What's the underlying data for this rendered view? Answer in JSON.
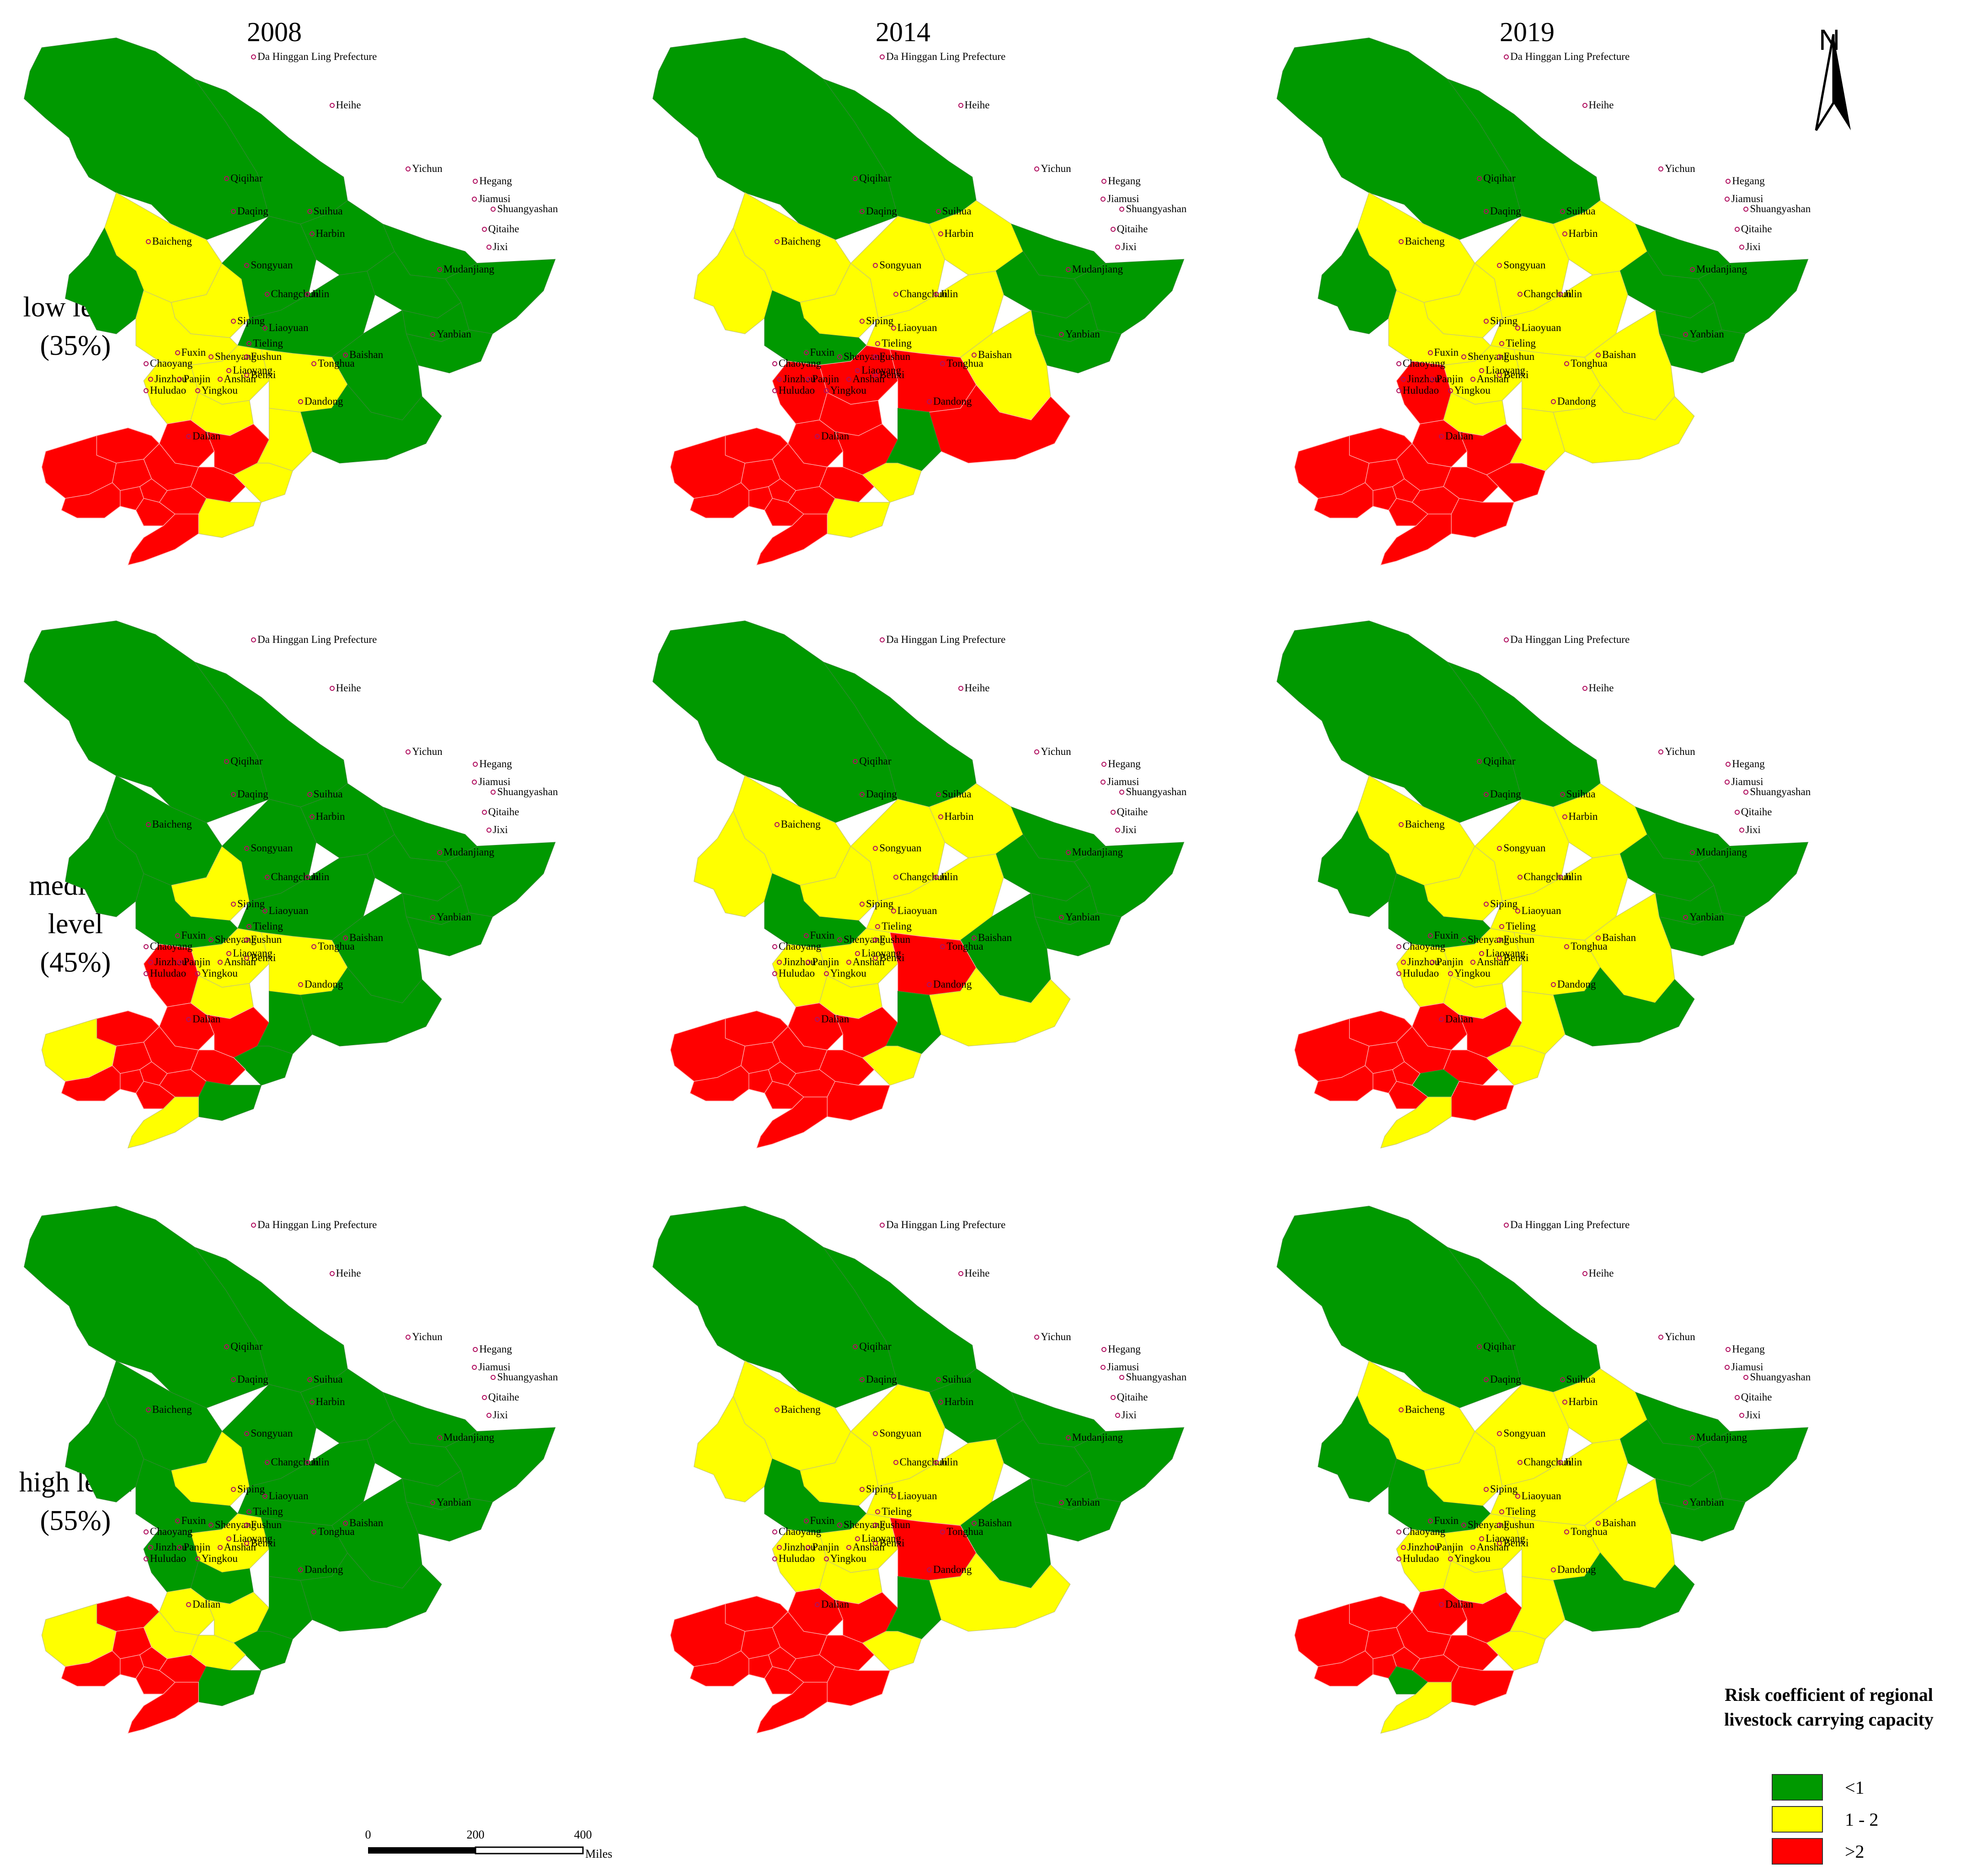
{
  "years": [
    "2008",
    "2014",
    "2019"
  ],
  "rows": [
    {
      "label": "low level",
      "pct": "(35%)"
    },
    {
      "label": "medium level",
      "pct": "(45%)"
    },
    {
      "label": "high level",
      "pct": "(55%)"
    }
  ],
  "north_label": "N",
  "legend": {
    "title_line1": "Risk coefficient of regional",
    "title_line2": "livestock carrying capacity",
    "items": [
      {
        "label": "<1",
        "color": "#009900"
      },
      {
        "label": "1 - 2",
        "color": "#ffff00"
      },
      {
        "label": ">2",
        "color": "#ff0000"
      }
    ]
  },
  "scale": {
    "ticks": [
      "0",
      "200",
      "400"
    ],
    "unit": "Miles"
  },
  "cities": [
    "Da Hinggan Ling Prefecture",
    "Heihe",
    "Yichun",
    "Hegang",
    "Jiamusi",
    "Shuangyashan",
    "Qiqihar",
    "Daqing",
    "Suihua",
    "Harbin",
    "Qitaihe",
    "Jixi",
    "Baicheng",
    "Songyuan",
    "Mudanjiang",
    "Changchun",
    "Jilin",
    "Siping",
    "Liaoyuan",
    "Yanbian",
    "Tieling",
    "Fuxin",
    "Shenyang",
    "Fushun",
    "Chaoyang",
    "Baishan",
    "Tonghua",
    "Benxi",
    "Anshan",
    "Jinzhou",
    "Panjin",
    "Liaoyang",
    "Huludao",
    "Yingkou",
    "Dandong",
    "Dalian"
  ],
  "colors": {
    "green": "#009900",
    "yellow": "#ffff00",
    "red": "#ff0000"
  },
  "risk_maps": [
    {
      "year": "2008",
      "level": "low level (35%)",
      "green": [
        "Da Hinggan Ling Prefecture",
        "Heihe",
        "Yichun",
        "Hegang",
        "Jiamusi",
        "Shuangyashan",
        "Qitaihe",
        "Jixi",
        "Mudanjiang",
        "Harbin",
        "Suihua",
        "Baicheng",
        "Yanbian"
      ],
      "yellow": [
        "Qiqihar",
        "Daqing",
        "Songyuan",
        "Changchun",
        "Jilin",
        "Siping",
        "Liaoyuan",
        "Tonghua",
        "Baishan",
        "Dandong"
      ],
      "red": [
        "Chaoyang",
        "Fuxin",
        "Tieling",
        "Shenyang",
        "Fushun",
        "Benxi",
        "Jinzhou",
        "Panjin",
        "Huludao",
        "Anshan",
        "Liaoyang",
        "Yingkou",
        "Dalian"
      ]
    },
    {
      "year": "2014",
      "level": "low level (35%)",
      "green": [
        "Da Hinggan Ling Prefecture",
        "Heihe",
        "Hegang",
        "Jiamusi",
        "Shuangyashan",
        "Qitaihe",
        "Jixi",
        "Songyuan",
        "Baishan"
      ],
      "yellow": [
        "Qiqihar",
        "Daqing",
        "Suihua",
        "Harbin",
        "Yichun",
        "Mudanjiang",
        "Baicheng",
        "Tonghua",
        "Dandong"
      ],
      "red": [
        "Changchun",
        "Jilin",
        "Siping",
        "Liaoyuan",
        "Yanbian",
        "Tieling",
        "Fuxin",
        "Shenyang",
        "Fushun",
        "Chaoyang",
        "Benxi",
        "Anshan",
        "Jinzhou",
        "Panjin",
        "Liaoyang",
        "Huludao",
        "Yingkou",
        "Dalian"
      ]
    },
    {
      "year": "2019",
      "level": "low level (35%)",
      "green": [
        "Da Hinggan Ling Prefecture",
        "Heihe",
        "Hegang",
        "Jiamusi",
        "Shuangyashan",
        "Qitaihe",
        "Jixi",
        "Baicheng"
      ],
      "yellow": [
        "Qiqihar",
        "Daqing",
        "Suihua",
        "Harbin",
        "Yichun",
        "Mudanjiang",
        "Songyuan",
        "Changchun",
        "Jilin",
        "Liaoyuan",
        "Yanbian",
        "Baishan"
      ],
      "red": [
        "Siping",
        "Tieling",
        "Fuxin",
        "Shenyang",
        "Fushun",
        "Chaoyang",
        "Benxi",
        "Anshan",
        "Jinzhou",
        "Panjin",
        "Liaoyang",
        "Huludao",
        "Yingkou",
        "Tonghua",
        "Dandong",
        "Dalian"
      ]
    },
    {
      "year": "2008",
      "level": "medium level (45%)",
      "green": [
        "Da Hinggan Ling Prefecture",
        "Heihe",
        "Yichun",
        "Hegang",
        "Jiamusi",
        "Shuangyashan",
        "Qitaihe",
        "Jixi",
        "Mudanjiang",
        "Harbin",
        "Suihua",
        "Qiqihar",
        "Baicheng",
        "Songyuan",
        "Yanbian",
        "Baishan",
        "Tonghua",
        "Dandong"
      ],
      "yellow": [
        "Daqing",
        "Changchun",
        "Jilin",
        "Liaoyuan",
        "Chaoyang",
        "Dalian"
      ],
      "red": [
        "Siping",
        "Tieling",
        "Fuxin",
        "Shenyang",
        "Fushun",
        "Benxi",
        "Anshan",
        "Jinzhou",
        "Panjin",
        "Liaoyang",
        "Huludao",
        "Yingkou"
      ]
    },
    {
      "year": "2014",
      "level": "medium level (45%)",
      "green": [
        "Da Hinggan Ling Prefecture",
        "Heihe",
        "Hegang",
        "Jiamusi",
        "Shuangyashan",
        "Qitaihe",
        "Jixi",
        "Mudanjiang",
        "Songyuan",
        "Baishan"
      ],
      "yellow": [
        "Qiqihar",
        "Daqing",
        "Suihua",
        "Harbin",
        "Yichun",
        "Baicheng",
        "Changchun",
        "Siping",
        "Liaoyuan",
        "Yanbian",
        "Tonghua"
      ],
      "red": [
        "Jilin",
        "Tieling",
        "Fuxin",
        "Shenyang",
        "Fushun",
        "Chaoyang",
        "Benxi",
        "Anshan",
        "Jinzhou",
        "Panjin",
        "Liaoyang",
        "Huludao",
        "Yingkou",
        "Dandong",
        "Dalian"
      ]
    },
    {
      "year": "2019",
      "level": "medium level (45%)",
      "green": [
        "Da Hinggan Ling Prefecture",
        "Heihe",
        "Hegang",
        "Jiamusi",
        "Shuangyashan",
        "Qitaihe",
        "Jixi",
        "Baicheng",
        "Songyuan",
        "Yanbian"
      ],
      "yellow": [
        "Qiqihar",
        "Daqing",
        "Suihua",
        "Harbin",
        "Yichun",
        "Mudanjiang",
        "Changchun",
        "Jilin",
        "Siping",
        "Liaoyuan",
        "Baishan",
        "Tonghua",
        "Dalian"
      ],
      "red": [
        "Tieling",
        "Fuxin",
        "Shenyang",
        "Fushun",
        "Chaoyang",
        "Benxi",
        "Jinzhou",
        "Panjin",
        "Liaoyang",
        "Huludao",
        "Yingkou",
        "Dandong"
      ]
    },
    {
      "year": "2008",
      "level": "high level (55%)",
      "green": [
        "Da Hinggan Ling Prefecture",
        "Heihe",
        "Yichun",
        "Hegang",
        "Jiamusi",
        "Shuangyashan",
        "Qitaihe",
        "Jixi",
        "Mudanjiang",
        "Harbin",
        "Suihua",
        "Qiqihar",
        "Baicheng",
        "Songyuan",
        "Jilin",
        "Siping",
        "Liaoyuan",
        "Yanbian",
        "Baishan",
        "Tonghua",
        "Dandong"
      ],
      "yellow": [
        "Daqing",
        "Changchun",
        "Tieling",
        "Shenyang",
        "Fushun",
        "Chaoyang",
        "Benxi"
      ],
      "red": [
        "Fuxin",
        "Anshan",
        "Jinzhou",
        "Panjin",
        "Liaoyang",
        "Huludao",
        "Yingkou",
        "Dalian"
      ]
    },
    {
      "year": "2014",
      "level": "high level (55%)",
      "green": [
        "Da Hinggan Ling Prefecture",
        "Heihe",
        "Yichun",
        "Hegang",
        "Jiamusi",
        "Shuangyashan",
        "Qitaihe",
        "Jixi",
        "Mudanjiang",
        "Songyuan",
        "Baishan"
      ],
      "yellow": [
        "Qiqihar",
        "Daqing",
        "Suihua",
        "Harbin",
        "Baicheng",
        "Changchun",
        "Siping",
        "Liaoyuan",
        "Yanbian",
        "Tonghua"
      ],
      "red": [
        "Jilin",
        "Tieling",
        "Fuxin",
        "Shenyang",
        "Fushun",
        "Chaoyang",
        "Benxi",
        "Anshan",
        "Jinzhou",
        "Panjin",
        "Liaoyang",
        "Huludao",
        "Yingkou",
        "Dandong",
        "Dalian"
      ]
    },
    {
      "year": "2019",
      "level": "high level (55%)",
      "green": [
        "Da Hinggan Ling Prefecture",
        "Heihe",
        "Hegang",
        "Jiamusi",
        "Shuangyashan",
        "Qitaihe",
        "Jixi",
        "Baicheng",
        "Songyuan",
        "Yanbian",
        "Yingkou"
      ],
      "yellow": [
        "Qiqihar",
        "Daqing",
        "Suihua",
        "Harbin",
        "Yichun",
        "Mudanjiang",
        "Changchun",
        "Jilin",
        "Siping",
        "Liaoyuan",
        "Baishan",
        "Tonghua",
        "Dalian"
      ],
      "red": [
        "Tieling",
        "Fuxin",
        "Shenyang",
        "Fushun",
        "Chaoyang",
        "Benxi",
        "Anshan",
        "Jinzhou",
        "Panjin",
        "Liaoyang",
        "Huludao",
        "Dandong"
      ]
    }
  ]
}
